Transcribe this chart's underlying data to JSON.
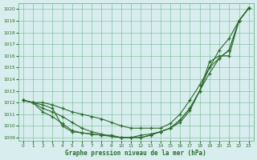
{
  "x": [
    0,
    1,
    2,
    3,
    4,
    5,
    6,
    7,
    8,
    9,
    10,
    11,
    12,
    13,
    14,
    15,
    16,
    17,
    18,
    19,
    20,
    21,
    22,
    23
  ],
  "line1": [
    1012.2,
    1012.0,
    1012.0,
    1011.8,
    1011.5,
    1011.2,
    1011.0,
    1010.8,
    1010.6,
    1010.3,
    1010.0,
    1009.8,
    1009.8,
    1009.8,
    1009.8,
    1010.2,
    1011.0,
    1012.2,
    1013.5,
    1015.0,
    1016.5,
    1017.5,
    1019.0,
    1020.1
  ],
  "line2": [
    1012.2,
    1012.0,
    1011.5,
    1011.2,
    1010.8,
    1010.3,
    1009.8,
    1009.5,
    1009.3,
    1009.1,
    1009.0,
    1009.0,
    1009.2,
    1009.3,
    1009.5,
    1009.8,
    1010.5,
    1011.5,
    1013.0,
    1014.5,
    1015.8,
    1016.5,
    1019.0,
    1020.1
  ],
  "line3": [
    1012.2,
    1012.0,
    1011.2,
    1010.8,
    1010.2,
    1009.6,
    1009.4,
    1009.3,
    1009.2,
    1009.1,
    1009.0,
    1009.0,
    1009.0,
    1009.2,
    1009.5,
    1009.8,
    1010.3,
    1011.3,
    1013.0,
    1015.0,
    1015.8,
    1016.5,
    1019.0,
    1020.1
  ],
  "line4": [
    1012.2,
    1012.0,
    1011.8,
    1011.5,
    1010.0,
    1009.5,
    1009.4,
    1009.3,
    1009.2,
    1009.2,
    1009.0,
    1009.0,
    1009.0,
    1009.2,
    1009.5,
    1009.8,
    1010.5,
    1011.5,
    1013.0,
    1015.5,
    1016.0,
    1016.0,
    1019.0,
    1020.1
  ],
  "ylim_min": 1009.0,
  "ylim_max": 1020.5,
  "yticks": [
    1009,
    1010,
    1011,
    1012,
    1013,
    1014,
    1015,
    1016,
    1017,
    1018,
    1019,
    1020
  ],
  "xlim_min": -0.5,
  "xlim_max": 23.5,
  "xticks": [
    0,
    1,
    2,
    3,
    4,
    5,
    6,
    7,
    8,
    9,
    10,
    11,
    12,
    13,
    14,
    15,
    16,
    17,
    18,
    19,
    20,
    21,
    22,
    23
  ],
  "xlabel": "Graphe pression niveau de la mer (hPa)",
  "line_color": "#2d6a2d",
  "bg_color": "#d8eeee",
  "grid_color": "#5aaa7a",
  "marker": "+",
  "marker_size": 3.5,
  "linewidth": 0.8
}
